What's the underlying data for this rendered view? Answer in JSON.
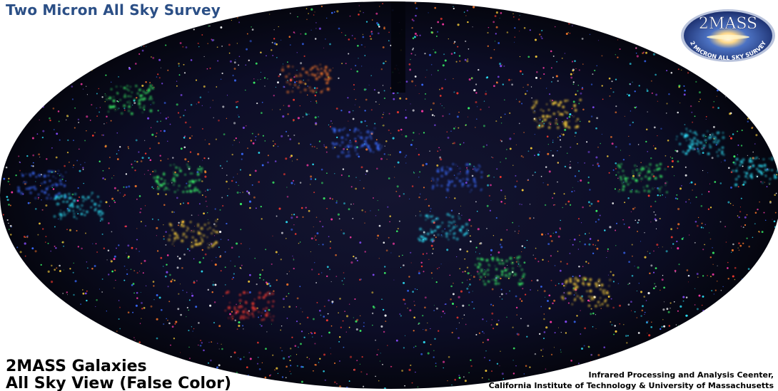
{
  "header": {
    "title": "Two Micron All Sky Survey"
  },
  "logo": {
    "main_text": "2MASS",
    "ring_text": "2 MICRON ALL SKY SURVEY"
  },
  "caption": {
    "line1": "2MASS Galaxies",
    "line2": "All Sky View (False Color)"
  },
  "credits": {
    "line1": "Infrared Processing and Analysis Ceenter,",
    "line2": "California Institute of Technology & University of Massachusetts"
  },
  "colors": {
    "title": "#2b4f86",
    "sky_background": "#0a0b24",
    "logo_blue": "#3a5fb0"
  }
}
